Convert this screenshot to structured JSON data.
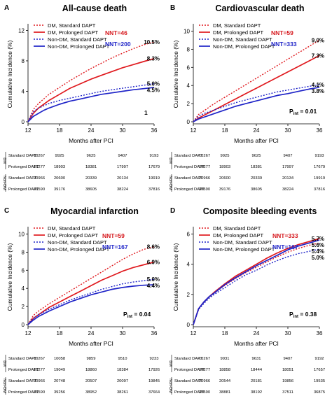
{
  "figure": {
    "xlabel": "Months after PCI",
    "ylabel": "Cumulative Incidence (%)",
    "legend_entries": [
      "DM, Standard DAPT",
      "DM, Prolonged DAPT",
      "Non-DM, Standard DAPT",
      "Non-DM, Prolonged DAPT"
    ],
    "colors": {
      "dm": "#e0191e",
      "nondm": "#1f24c8",
      "nnt_dm": "#d6191e",
      "nnt_nondm": "#1f24c8"
    },
    "risk_groups": {
      "dm": "DM",
      "nondm": "Non-DM"
    },
    "risk_rows": [
      "Standard DAPT",
      "Prolonged DAPT",
      "Standard DAPT",
      "Prolonged DAPT"
    ]
  },
  "chart_data": [
    {
      "type": "line",
      "panel_letter": "A",
      "title": "All-cause death",
      "xlabel": "Months after PCI",
      "ylabel": "Cumulative Incidence (%)",
      "x_ticks": [
        12,
        18,
        24,
        30,
        36
      ],
      "y_ticks": [
        0,
        4,
        8,
        12
      ],
      "xlim": [
        12,
        36
      ],
      "ylim": [
        0,
        12.5
      ],
      "nnt": {
        "dm": "NNT=46",
        "nondm": "NNT=200"
      },
      "p_text": {
        "main": "",
        "sub": "",
        "value": "1"
      },
      "series": [
        {
          "name": "DM, Standard DAPT",
          "x": [
            12,
            13,
            14,
            15,
            16,
            18,
            20,
            22,
            24,
            26,
            28,
            30,
            32,
            34,
            36
          ],
          "y": [
            0,
            1.6,
            2.4,
            3.0,
            3.6,
            4.5,
            5.4,
            6.2,
            7.0,
            7.7,
            8.4,
            9.0,
            9.6,
            10.1,
            10.5
          ],
          "end_label": "10.5%"
        },
        {
          "name": "DM, Prolonged DAPT",
          "x": [
            12,
            13,
            14,
            15,
            16,
            18,
            20,
            22,
            24,
            26,
            28,
            30,
            32,
            34,
            36
          ],
          "y": [
            0,
            1.1,
            1.8,
            2.3,
            2.8,
            3.6,
            4.4,
            5.0,
            5.6,
            6.1,
            6.6,
            7.1,
            7.5,
            7.9,
            8.3
          ],
          "end_label": "8.3%"
        },
        {
          "name": "Non-DM, Standard DAPT",
          "x": [
            12,
            13,
            14,
            15,
            16,
            18,
            20,
            22,
            24,
            26,
            28,
            30,
            32,
            34,
            36
          ],
          "y": [
            0,
            1.3,
            1.8,
            2.1,
            2.4,
            2.8,
            3.1,
            3.4,
            3.7,
            4.0,
            4.2,
            4.4,
            4.6,
            4.8,
            5.0
          ],
          "end_label": "5.0%"
        },
        {
          "name": "Non-DM, Prolonged DAPT",
          "x": [
            12,
            13,
            14,
            15,
            16,
            18,
            20,
            22,
            24,
            26,
            28,
            30,
            32,
            34,
            36
          ],
          "y": [
            0,
            0.7,
            1.1,
            1.5,
            1.8,
            2.3,
            2.7,
            3.0,
            3.3,
            3.6,
            3.8,
            4.0,
            4.2,
            4.35,
            4.5
          ],
          "end_label": "4.5%"
        }
      ],
      "risk_table": {
        "groups": [
          "DM",
          "Non-DM"
        ],
        "rows": [
          {
            "label": "Standard DAPT",
            "values": [
              "10267",
              "9925",
              "9625",
              "9407",
              "9193"
            ]
          },
          {
            "label": "Prolonged DAPT",
            "values": [
              "19277",
              "18903",
              "18381",
              "17997",
              "17679"
            ]
          },
          {
            "label": "Standard DAPT",
            "values": [
              "20966",
              "20600",
              "20339",
              "20134",
              "19919"
            ]
          },
          {
            "label": "Prolonged DAPT",
            "values": [
              "39590",
              "39176",
              "38605",
              "38224",
              "37816"
            ]
          }
        ]
      }
    },
    {
      "type": "line",
      "panel_letter": "B",
      "title": "Cardiovascular death",
      "xlabel": "Months after PCI",
      "ylabel": "Cumulative Incidence (%)",
      "x_ticks": [
        12,
        18,
        24,
        30,
        36
      ],
      "y_ticks": [
        0,
        2,
        4,
        6,
        8,
        10
      ],
      "xlim": [
        12,
        36
      ],
      "ylim": [
        0,
        10.5
      ],
      "nnt": {
        "dm": "NNT=59",
        "nondm": "NNT=333"
      },
      "p_text": {
        "main": "P",
        "sub": "int",
        "value": " = 0.01"
      },
      "series": [
        {
          "name": "DM, Standard DAPT",
          "x": [
            12,
            13,
            14,
            15,
            16,
            18,
            20,
            22,
            24,
            26,
            28,
            30,
            32,
            34,
            36
          ],
          "y": [
            0,
            0.8,
            1.2,
            1.6,
            2.0,
            2.7,
            3.4,
            4.1,
            4.8,
            5.5,
            6.2,
            6.9,
            7.6,
            8.3,
            9.0
          ],
          "end_label": "9.0%"
        },
        {
          "name": "DM, Prolonged DAPT",
          "x": [
            12,
            13,
            14,
            15,
            16,
            18,
            20,
            22,
            24,
            26,
            28,
            30,
            32,
            34,
            36
          ],
          "y": [
            0,
            0.4,
            0.7,
            1.0,
            1.3,
            1.9,
            2.5,
            3.1,
            3.7,
            4.3,
            4.9,
            5.5,
            6.1,
            6.7,
            7.3
          ],
          "end_label": "7.3%"
        },
        {
          "name": "Non-DM, Standard DAPT",
          "x": [
            12,
            13,
            14,
            15,
            16,
            18,
            20,
            22,
            24,
            26,
            28,
            30,
            32,
            34,
            36
          ],
          "y": [
            0,
            0.6,
            0.9,
            1.1,
            1.3,
            1.7,
            2.1,
            2.4,
            2.7,
            3.0,
            3.3,
            3.5,
            3.7,
            3.9,
            4.1
          ],
          "end_label": "4.1%"
        },
        {
          "name": "Non-DM, Prolonged DAPT",
          "x": [
            12,
            13,
            14,
            15,
            16,
            18,
            20,
            22,
            24,
            26,
            28,
            30,
            32,
            34,
            36
          ],
          "y": [
            0,
            0.3,
            0.5,
            0.7,
            0.9,
            1.3,
            1.7,
            2.0,
            2.3,
            2.6,
            2.9,
            3.1,
            3.35,
            3.6,
            3.8
          ],
          "end_label": "3.8%"
        }
      ],
      "risk_table": {
        "groups": [
          "DM",
          "Non-DM"
        ],
        "rows": [
          {
            "label": "Standard DAPT",
            "values": [
              "10267",
              "9925",
              "9625",
              "9407",
              "9193"
            ]
          },
          {
            "label": "Prolonged DAPT",
            "values": [
              "19277",
              "18903",
              "18381",
              "17997",
              "17679"
            ]
          },
          {
            "label": "Standard DAPT",
            "values": [
              "20966",
              "20600",
              "20339",
              "20134",
              "19919"
            ]
          },
          {
            "label": "Prolonged DAPT",
            "values": [
              "39590",
              "39176",
              "38605",
              "38224",
              "37816"
            ]
          }
        ]
      }
    },
    {
      "type": "line",
      "panel_letter": "C",
      "title": "Myocardial infarction",
      "xlabel": "Months after PCI",
      "ylabel": "Cumulative Incidence (%)",
      "x_ticks": [
        12,
        18,
        24,
        30,
        36
      ],
      "y_ticks": [
        0,
        2,
        4,
        6,
        8,
        10
      ],
      "xlim": [
        12,
        36
      ],
      "ylim": [
        0,
        10.5
      ],
      "nnt": {
        "dm": "NNT=59",
        "nondm": "NNT=167"
      },
      "p_text": {
        "main": "P",
        "sub": "int",
        "value": " = 0.04"
      },
      "series": [
        {
          "name": "DM, Standard DAPT",
          "x": [
            12,
            13,
            14,
            15,
            16,
            18,
            20,
            22,
            24,
            26,
            28,
            30,
            32,
            34,
            36
          ],
          "y": [
            0,
            1.0,
            1.5,
            1.9,
            2.3,
            3.0,
            3.7,
            4.4,
            5.1,
            5.8,
            6.5,
            7.2,
            7.8,
            8.3,
            8.6
          ],
          "end_label": "8.6%"
        },
        {
          "name": "DM, Prolonged DAPT",
          "x": [
            12,
            13,
            14,
            15,
            16,
            18,
            20,
            22,
            24,
            26,
            28,
            30,
            32,
            34,
            36
          ],
          "y": [
            0,
            0.7,
            1.1,
            1.5,
            1.9,
            2.5,
            3.1,
            3.7,
            4.3,
            4.9,
            5.4,
            5.9,
            6.3,
            6.6,
            6.9
          ],
          "end_label": "6.9%"
        },
        {
          "name": "Non-DM, Standard DAPT",
          "x": [
            12,
            13,
            14,
            15,
            16,
            18,
            20,
            22,
            24,
            26,
            28,
            30,
            32,
            34,
            36
          ],
          "y": [
            0,
            0.7,
            1.1,
            1.4,
            1.7,
            2.2,
            2.7,
            3.1,
            3.5,
            3.9,
            4.2,
            4.5,
            4.7,
            4.85,
            5.0
          ],
          "end_label": "5.0%"
        },
        {
          "name": "Non-DM, Prolonged DAPT",
          "x": [
            12,
            13,
            14,
            15,
            16,
            18,
            20,
            22,
            24,
            26,
            28,
            30,
            32,
            34,
            36
          ],
          "y": [
            0,
            0.5,
            0.9,
            1.2,
            1.5,
            2.0,
            2.5,
            2.9,
            3.3,
            3.6,
            3.9,
            4.1,
            4.25,
            4.35,
            4.4
          ],
          "end_label": "4.4%"
        }
      ],
      "risk_table": {
        "groups": [
          "DM",
          "Non-DM"
        ],
        "rows": [
          {
            "label": "Standard DAPT",
            "values": [
              "10267",
              "10058",
              "9859",
              "9510",
              "9233"
            ]
          },
          {
            "label": "Prolonged DAPT",
            "values": [
              "19277",
              "19049",
              "18860",
              "18384",
              "17926"
            ]
          },
          {
            "label": "Standard DAPT",
            "values": [
              "20966",
              "20748",
              "20507",
              "20097",
              "19845"
            ]
          },
          {
            "label": "Prolonged DAPT",
            "values": [
              "39590",
              "39256",
              "38952",
              "38261",
              "37664"
            ]
          }
        ]
      }
    },
    {
      "type": "line",
      "panel_letter": "D",
      "title": "Composite bleeding events",
      "xlabel": "Months after PCI",
      "ylabel": "Cumulative Incidence (%)",
      "x_ticks": [
        12,
        18,
        24,
        30,
        36
      ],
      "y_ticks": [
        0,
        2,
        4,
        6
      ],
      "xlim": [
        12,
        36
      ],
      "ylim": [
        0,
        6.3
      ],
      "nnt": {
        "dm": "NNT=333",
        "nondm": "NNT=167"
      },
      "p_text": {
        "main": "P",
        "sub": "int",
        "value": " = 0.38"
      },
      "series": [
        {
          "name": "DM, Standard DAPT",
          "x": [
            12,
            13,
            14,
            15,
            16,
            18,
            20,
            22,
            24,
            26,
            28,
            30,
            32,
            34,
            36
          ],
          "y": [
            0,
            1.0,
            1.45,
            1.8,
            2.1,
            2.6,
            3.05,
            3.45,
            3.8,
            4.15,
            4.5,
            4.8,
            5.05,
            5.25,
            5.4
          ],
          "end_label": "5.4%"
        },
        {
          "name": "DM, Prolonged DAPT",
          "x": [
            12,
            13,
            14,
            15,
            16,
            18,
            20,
            22,
            24,
            26,
            28,
            30,
            32,
            34,
            36
          ],
          "y": [
            0,
            1.05,
            1.5,
            1.85,
            2.15,
            2.7,
            3.2,
            3.6,
            4.0,
            4.4,
            4.75,
            5.05,
            5.3,
            5.5,
            5.7
          ],
          "end_label": "5.7%"
        },
        {
          "name": "Non-DM, Standard DAPT",
          "x": [
            12,
            13,
            14,
            15,
            16,
            18,
            20,
            22,
            24,
            26,
            28,
            30,
            32,
            34,
            36
          ],
          "y": [
            0,
            1.0,
            1.4,
            1.75,
            2.0,
            2.45,
            2.9,
            3.3,
            3.6,
            3.95,
            4.25,
            4.5,
            4.7,
            4.85,
            5.0
          ],
          "end_label": "5.0%"
        },
        {
          "name": "Non-DM, Prolonged DAPT",
          "x": [
            12,
            13,
            14,
            15,
            16,
            18,
            20,
            22,
            24,
            26,
            28,
            30,
            32,
            34,
            36
          ],
          "y": [
            0,
            1.05,
            1.5,
            1.85,
            2.1,
            2.65,
            3.1,
            3.5,
            3.9,
            4.25,
            4.6,
            4.95,
            5.2,
            5.4,
            5.6
          ],
          "end_label": "5.6%"
        }
      ],
      "risk_table": {
        "groups": [
          "DM",
          "Non-DM"
        ],
        "rows": [
          {
            "label": "Standard DAPT",
            "values": [
              "10267",
              "9931",
              "9631",
              "9407",
              "9192"
            ]
          },
          {
            "label": "Prolonged DAPT",
            "values": [
              "19277",
              "18858",
              "18444",
              "18051",
              "17657"
            ]
          },
          {
            "label": "Standard DAPT",
            "values": [
              "20966",
              "20544",
              "20181",
              "19856",
              "19535"
            ]
          },
          {
            "label": "Prolonged DAPT",
            "values": [
              "39590",
              "38881",
              "38192",
              "37511",
              "36875"
            ]
          }
        ]
      }
    }
  ]
}
